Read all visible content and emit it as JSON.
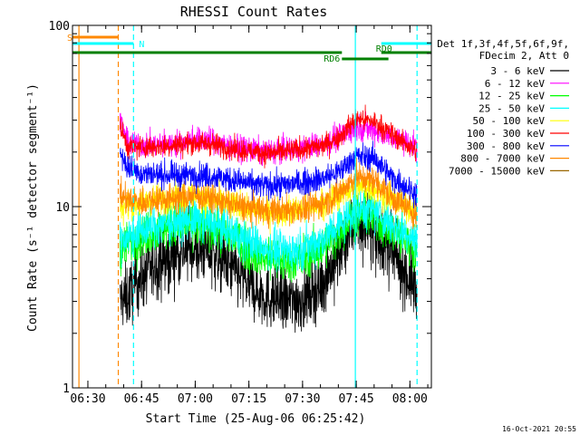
{
  "chart_data": {
    "type": "line",
    "title": "RHESSI Count Rates",
    "xlabel": "Start Time (25-Aug-06 06:25:42)",
    "ylabel": "Count Rate (s⁻¹ detector segment⁻¹)",
    "y_scale": "log",
    "ylim": [
      1,
      100
    ],
    "xlim": [
      "06:25:42",
      "08:06:00"
    ],
    "x_ticks": [
      "06:30",
      "06:45",
      "07:00",
      "07:15",
      "07:30",
      "07:45",
      "08:00"
    ],
    "y_ticks": [
      "1",
      "10",
      "100"
    ],
    "footer": "16-Oct-2021 20:55",
    "legend": {
      "placement": "right",
      "header": [
        "Det 1f,3f,4f,5f,6f,9f,",
        "FDecim 2, Att 0"
      ]
    },
    "series": [
      {
        "name": "3 - 6 keV",
        "color": "#000000",
        "x": [
          "06:39:00",
          "06:41:00",
          "06:45:00",
          "06:50:00",
          "06:55:00",
          "07:00:00",
          "07:05:00",
          "07:10:00",
          "07:15:00",
          "07:20:00",
          "07:25:00",
          "07:30:00",
          "07:35:00",
          "07:40:00",
          "07:45:00",
          "07:50:00",
          "07:55:00",
          "08:00:00",
          "08:02:00"
        ],
        "values": [
          3.0,
          3.2,
          4.1,
          5.0,
          5.6,
          6.0,
          5.5,
          4.6,
          3.7,
          3.2,
          3.0,
          3.1,
          3.7,
          5.4,
          8.2,
          7.4,
          5.4,
          4.0,
          3.4
        ]
      },
      {
        "name": "6 - 12 keV",
        "color": "#ff00ff",
        "x": [
          "06:39:00",
          "06:41:00",
          "06:45:00",
          "06:50:00",
          "06:55:00",
          "07:00:00",
          "07:05:00",
          "07:10:00",
          "07:15:00",
          "07:20:00",
          "07:25:00",
          "07:30:00",
          "07:35:00",
          "07:40:00",
          "07:45:00",
          "07:50:00",
          "07:55:00",
          "08:00:00",
          "08:02:00"
        ],
        "values": [
          31.0,
          22.5,
          22.0,
          21.8,
          22.5,
          23.5,
          23.0,
          21.5,
          20.5,
          20.0,
          20.5,
          21.0,
          22.0,
          24.0,
          27.5,
          26.5,
          24.0,
          22.5,
          21.0
        ]
      },
      {
        "name": "12 - 25 keV",
        "color": "#00ff00",
        "x": [
          "06:39:00",
          "06:41:00",
          "06:45:00",
          "06:50:00",
          "06:55:00",
          "07:00:00",
          "07:05:00",
          "07:10:00",
          "07:15:00",
          "07:20:00",
          "07:25:00",
          "07:30:00",
          "07:35:00",
          "07:40:00",
          "07:45:00",
          "07:50:00",
          "07:55:00",
          "08:00:00",
          "08:02:00"
        ],
        "values": [
          5.8,
          6.2,
          6.9,
          7.5,
          7.8,
          8.0,
          7.6,
          6.8,
          5.8,
          5.2,
          5.0,
          5.2,
          5.8,
          7.2,
          9.2,
          8.8,
          7.3,
          6.2,
          5.8
        ]
      },
      {
        "name": "25 - 50 keV",
        "color": "#00ffff",
        "x": [
          "06:39:00",
          "06:41:00",
          "06:45:00",
          "06:50:00",
          "06:55:00",
          "07:00:00",
          "07:05:00",
          "07:10:00",
          "07:15:00",
          "07:20:00",
          "07:25:00",
          "07:30:00",
          "07:35:00",
          "07:40:00",
          "07:45:00",
          "07:50:00",
          "07:55:00",
          "08:00:00",
          "08:02:00"
        ],
        "values": [
          6.5,
          6.8,
          7.4,
          8.0,
          8.3,
          8.5,
          8.1,
          7.3,
          6.4,
          5.9,
          5.7,
          5.9,
          6.5,
          7.9,
          9.8,
          9.5,
          8.0,
          7.0,
          6.5
        ]
      },
      {
        "name": "50 - 100 keV",
        "color": "#ffff00",
        "x": [
          "06:39:00",
          "06:41:00",
          "06:45:00",
          "06:50:00",
          "06:55:00",
          "07:00:00",
          "07:05:00",
          "07:10:00",
          "07:15:00",
          "07:20:00",
          "07:25:00",
          "07:30:00",
          "07:35:00",
          "07:40:00",
          "07:45:00",
          "07:50:00",
          "07:55:00",
          "08:00:00",
          "08:02:00"
        ],
        "values": [
          10.0,
          10.2,
          10.5,
          11.0,
          11.2,
          11.4,
          11.0,
          10.2,
          9.8,
          9.4,
          9.4,
          9.6,
          10.2,
          11.5,
          13.0,
          12.5,
          11.0,
          9.8,
          9.5
        ]
      },
      {
        "name": "100 - 300 keV",
        "color": "#ff0000",
        "x": [
          "06:39:00",
          "06:41:00",
          "06:45:00",
          "06:50:00",
          "06:55:00",
          "07:00:00",
          "07:05:00",
          "07:10:00",
          "07:15:00",
          "07:20:00",
          "07:25:00",
          "07:30:00",
          "07:35:00",
          "07:40:00",
          "07:45:00",
          "07:50:00",
          "07:55:00",
          "08:00:00",
          "08:02:00"
        ],
        "values": [
          28.0,
          21.5,
          21.2,
          21.5,
          22.0,
          22.5,
          22.0,
          21.0,
          20.2,
          19.8,
          20.0,
          20.8,
          21.5,
          24.0,
          30.5,
          29.5,
          25.0,
          21.5,
          20.0
        ]
      },
      {
        "name": "300 - 800 keV",
        "color": "#0000ff",
        "x": [
          "06:39:00",
          "06:41:00",
          "06:45:00",
          "06:50:00",
          "06:55:00",
          "07:00:00",
          "07:05:00",
          "07:10:00",
          "07:15:00",
          "07:20:00",
          "07:25:00",
          "07:30:00",
          "07:35:00",
          "07:40:00",
          "07:45:00",
          "07:50:00",
          "07:55:00",
          "08:00:00",
          "08:02:00"
        ],
        "values": [
          20.0,
          16.5,
          15.3,
          15.0,
          14.8,
          15.0,
          14.8,
          14.0,
          13.4,
          13.0,
          13.2,
          13.6,
          14.2,
          15.5,
          19.0,
          18.5,
          14.5,
          12.5,
          11.5
        ]
      },
      {
        "name": "800 - 7000 keV",
        "color": "#ff8800",
        "x": [
          "06:39:00",
          "06:41:00",
          "06:45:00",
          "06:50:00",
          "06:55:00",
          "07:00:00",
          "07:05:00",
          "07:10:00",
          "07:15:00",
          "07:20:00",
          "07:25:00",
          "07:30:00",
          "07:35:00",
          "07:40:00",
          "07:45:00",
          "07:50:00",
          "07:55:00",
          "08:00:00",
          "08:02:00"
        ],
        "values": [
          11.5,
          10.8,
          10.7,
          11.0,
          11.2,
          11.5,
          11.1,
          10.3,
          9.8,
          9.5,
          9.5,
          9.7,
          10.3,
          11.8,
          14.5,
          14.0,
          11.2,
          9.6,
          9.0
        ]
      },
      {
        "name": "7000 - 15000 keV",
        "color": "#996600",
        "x": [],
        "values": []
      }
    ],
    "markers": {
      "orange_solid": {
        "color": "#ff8800",
        "time": "06:27:30"
      },
      "orange_dashed": {
        "color": "#ff8800",
        "time": "06:38:30"
      },
      "cyan_solid": {
        "color": "#00ffff",
        "time": "07:44:45"
      },
      "cyan_dashed": [
        {
          "color": "#00ffff",
          "time": "06:42:45"
        },
        {
          "color": "#00ffff",
          "time": "08:02:00"
        }
      ]
    },
    "flag_bars": [
      {
        "label": "S",
        "color": "#ff8800",
        "start": "06:25:42",
        "end": "06:38:30",
        "level": 1
      },
      {
        "label": "N",
        "color": "#00ffff",
        "start": "06:25:42",
        "end": "06:42:45",
        "level": 2
      },
      {
        "label": "",
        "color": "#00ffff",
        "start": "07:52:00",
        "end": "08:06:00",
        "level": 2
      },
      {
        "label": "",
        "color": "#008000",
        "start": "06:25:42",
        "end": "07:41:00",
        "level": 3
      },
      {
        "label": "RD0",
        "color": "#008000",
        "start": "07:52:00",
        "end": "08:06:00",
        "level": 3
      },
      {
        "label": "RD6",
        "color": "#008000",
        "start": "07:41:00",
        "end": "07:54:00",
        "level": 4
      }
    ]
  }
}
